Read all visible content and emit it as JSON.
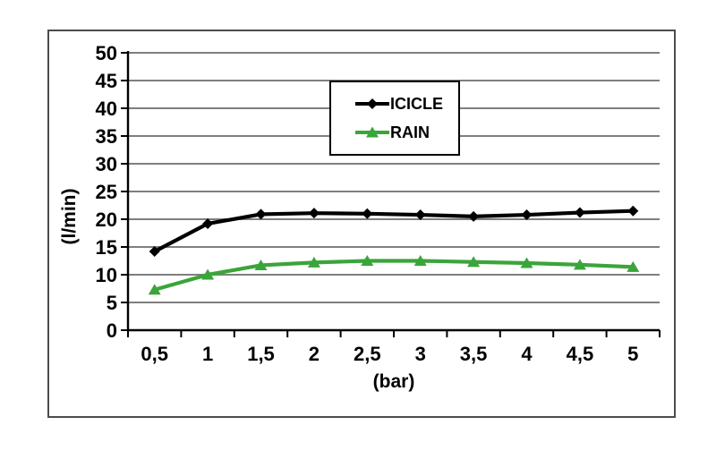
{
  "colors": {
    "background": "#ffffff",
    "frame": "#4c4c4c",
    "grid": "#7f7f7f",
    "axis": "#000000",
    "text": "#000000",
    "icicle": "#000000",
    "rain": "#3aa53a"
  },
  "chart_data": {
    "type": "line",
    "title": "",
    "xlabel": "(bar)",
    "ylabel": "(l/min)",
    "x": [
      0.5,
      1,
      1.5,
      2,
      2.5,
      3,
      3.5,
      4,
      4.5,
      5
    ],
    "x_tick_labels": [
      "0,5",
      "1",
      "1,5",
      "2",
      "2,5",
      "3",
      "3,5",
      "4",
      "4,5",
      "5"
    ],
    "y_ticks": [
      0,
      5,
      10,
      15,
      20,
      25,
      30,
      35,
      40,
      45,
      50
    ],
    "ylim": [
      0,
      50
    ],
    "grid": true,
    "legend_position": "top-center-box",
    "series": [
      {
        "name": "ICICLE",
        "color": "#000000",
        "marker": "diamond",
        "values": [
          14.2,
          19.2,
          20.9,
          21.1,
          21.0,
          20.8,
          20.5,
          20.8,
          21.2,
          21.5
        ]
      },
      {
        "name": "RAIN",
        "color": "#3aa53a",
        "marker": "triangle",
        "values": [
          7.3,
          10.0,
          11.7,
          12.2,
          12.5,
          12.5,
          12.3,
          12.1,
          11.8,
          11.4
        ]
      }
    ]
  }
}
